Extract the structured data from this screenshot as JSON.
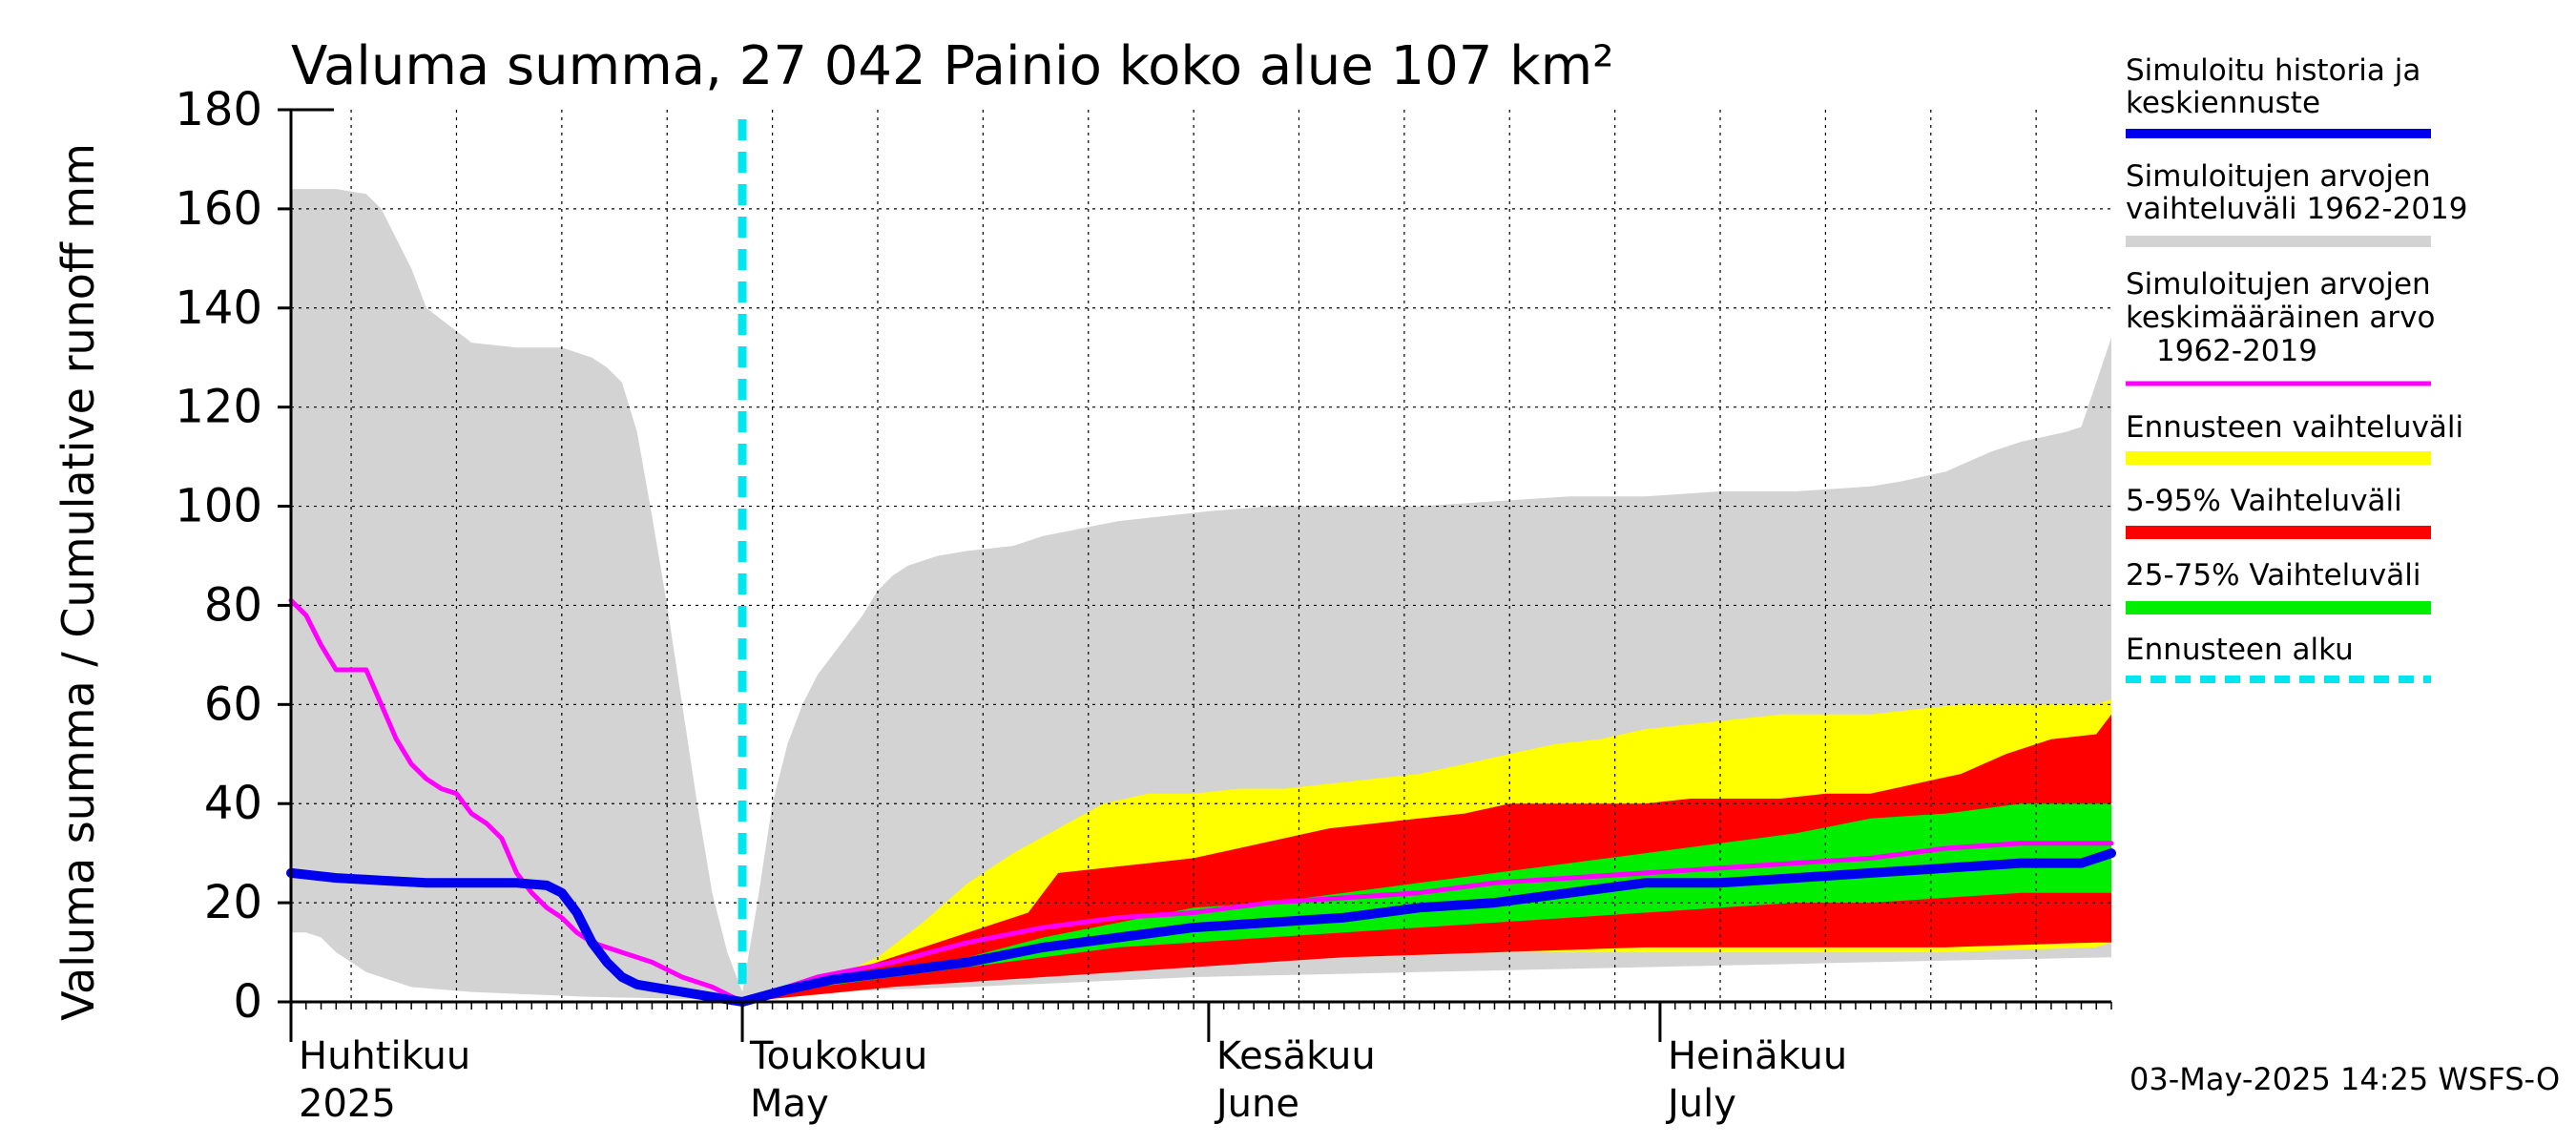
{
  "chart_data": {
    "type": "area",
    "title": "Valuma summa, 27 042 Painio koko alue 107 km²",
    "ylabel": "Valuma summa / Cumulative runoff    mm",
    "xlabel": "",
    "ylim": [
      0,
      180
    ],
    "yticks": [
      "0",
      "20",
      "40",
      "60",
      "80",
      "100",
      "120",
      "140",
      "160",
      "180"
    ],
    "grid": true,
    "x_start_day": 0,
    "x_end_day": 121,
    "forecast_start_day": 30,
    "x_labels": [
      {
        "day": 0,
        "line1": "Huhtikuu",
        "line2": "2025"
      },
      {
        "day": 30,
        "line1": "Toukokuu",
        "line2": "May"
      },
      {
        "day": 61,
        "line1": "Kesäkuu",
        "line2": "June"
      },
      {
        "day": 91,
        "line1": "Heinäkuu",
        "line2": "July"
      }
    ],
    "colors": {
      "hist_range": "#d3d3d3",
      "forecast_range": "#ffff00",
      "p5_95": "#ff0000",
      "p25_75": "#00ee00",
      "mean": "#ff00ff",
      "median": "#0000ee",
      "forecast_start": "#00e5ee"
    },
    "series": [
      {
        "name": "hist_range_upper",
        "x": [
          0,
          3,
          5,
          6,
          8,
          9,
          12,
          15,
          18,
          19,
          20,
          21,
          22,
          23,
          24,
          25,
          26,
          27,
          28,
          29,
          30,
          31,
          32,
          33,
          34,
          35,
          36,
          37,
          38,
          39,
          40,
          41,
          43,
          45,
          48,
          50,
          55,
          61,
          65,
          70,
          75,
          80,
          85,
          90,
          95,
          100,
          105,
          107,
          110,
          113,
          115,
          118,
          119,
          120,
          121
        ],
        "values": [
          164,
          164,
          163,
          160,
          148,
          140,
          133,
          132,
          132,
          131,
          130,
          128,
          125,
          115,
          98,
          80,
          60,
          40,
          22,
          10,
          2,
          20,
          40,
          52,
          60,
          66,
          70,
          74,
          78,
          83,
          86,
          88,
          90,
          91,
          92,
          94,
          97,
          99,
          100,
          100,
          100,
          101,
          102,
          102,
          103,
          103,
          104,
          105,
          107,
          111,
          113,
          115,
          116,
          125,
          134
        ]
      },
      {
        "name": "hist_range_lower",
        "x": [
          0,
          1,
          2,
          3,
          4,
          5,
          8,
          12,
          20,
          28,
          30,
          35,
          45,
          60,
          75,
          90,
          105,
          121
        ],
        "values": [
          14,
          14,
          13,
          10,
          8,
          6,
          3,
          2,
          1,
          0.5,
          0,
          2,
          3,
          5,
          6,
          7,
          8,
          9
        ]
      },
      {
        "name": "forecast_range_upper",
        "x": [
          30,
          33,
          36,
          39,
          42,
          45,
          48,
          51,
          54,
          57,
          60,
          63,
          66,
          69,
          72,
          75,
          78,
          81,
          84,
          87,
          90,
          93,
          96,
          99,
          102,
          105,
          108,
          111,
          114,
          117,
          120,
          121
        ],
        "values": [
          0,
          2,
          5,
          9,
          16,
          24,
          30,
          35,
          40,
          42,
          42,
          43,
          43,
          44,
          45,
          46,
          48,
          50,
          52,
          53,
          55,
          56,
          57,
          58,
          58,
          58,
          59,
          60,
          60,
          60,
          60,
          61
        ]
      },
      {
        "name": "forecast_range_lower",
        "x": [
          30,
          40,
          50,
          60,
          70,
          80,
          90,
          100,
          110,
          120,
          121
        ],
        "values": [
          0,
          3,
          6,
          8,
          9,
          10,
          10,
          10,
          10,
          11,
          12
        ]
      },
      {
        "name": "p95",
        "x": [
          30,
          33,
          36,
          39,
          42,
          45,
          47,
          49,
          51,
          54,
          57,
          60,
          63,
          66,
          69,
          72,
          75,
          78,
          81,
          84,
          87,
          90,
          93,
          96,
          99,
          102,
          105,
          108,
          111,
          114,
          117,
          120,
          121
        ],
        "values": [
          0,
          2,
          5,
          8,
          11,
          14,
          16,
          18,
          26,
          27,
          28,
          29,
          31,
          33,
          35,
          36,
          37,
          38,
          40,
          40,
          40,
          40,
          41,
          41,
          41,
          42,
          42,
          44,
          46,
          50,
          53,
          54,
          58
        ]
      },
      {
        "name": "p5",
        "x": [
          30,
          40,
          50,
          60,
          70,
          80,
          90,
          100,
          110,
          120,
          121
        ],
        "values": [
          0,
          3,
          5,
          7,
          9,
          10,
          11,
          11,
          11,
          12,
          12
        ]
      },
      {
        "name": "p75",
        "x": [
          30,
          35,
          40,
          45,
          50,
          55,
          60,
          65,
          70,
          75,
          80,
          85,
          90,
          95,
          100,
          105,
          110,
          115,
          120,
          121
        ],
        "values": [
          0,
          3,
          6,
          9,
          13,
          16,
          19,
          20,
          22,
          24,
          26,
          28,
          30,
          32,
          34,
          37,
          38,
          40,
          40,
          40
        ]
      },
      {
        "name": "p25",
        "x": [
          30,
          35,
          40,
          45,
          50,
          55,
          60,
          65,
          70,
          75,
          80,
          85,
          90,
          95,
          100,
          105,
          110,
          115,
          120,
          121
        ],
        "values": [
          0,
          3,
          5,
          7,
          9,
          11,
          12,
          13,
          14,
          15,
          16,
          17,
          18,
          19,
          20,
          20,
          21,
          22,
          22,
          22
        ]
      },
      {
        "name": "Simuloitujen arvojen keskimääräinen arvo 1962-2019",
        "x": [
          0,
          1,
          2,
          3,
          5,
          6,
          7,
          8,
          9,
          10,
          11,
          12,
          13,
          14,
          15,
          16,
          17,
          18,
          19,
          20,
          22,
          24,
          26,
          28,
          30,
          32,
          35,
          40,
          45,
          50,
          55,
          60,
          65,
          70,
          75,
          80,
          85,
          90,
          95,
          100,
          105,
          110,
          115,
          121
        ],
        "values": [
          81,
          78,
          72,
          67,
          67,
          60,
          53,
          48,
          45,
          43,
          42,
          38,
          36,
          33,
          26,
          22,
          19,
          17,
          14,
          12,
          10,
          8,
          5,
          3,
          0,
          2,
          5,
          8,
          12,
          15,
          17,
          18,
          20,
          21,
          22,
          24,
          25,
          26,
          27,
          28,
          29,
          31,
          32,
          32
        ]
      },
      {
        "name": "Simuloitu historia ja keskiennuste",
        "x": [
          0,
          3,
          6,
          9,
          12,
          15,
          17,
          18,
          19,
          20,
          21,
          22,
          23,
          24,
          25,
          26,
          27,
          28,
          29,
          30,
          33,
          36,
          40,
          45,
          50,
          55,
          60,
          65,
          70,
          75,
          80,
          85,
          90,
          95,
          100,
          105,
          110,
          115,
          119,
          121
        ],
        "values": [
          26,
          25,
          24.5,
          24,
          24,
          24,
          23.5,
          22,
          18,
          12,
          8,
          5,
          3.5,
          3,
          2.5,
          2,
          1.5,
          1,
          0.5,
          0,
          2.5,
          4.5,
          6,
          8,
          11,
          13,
          15,
          16,
          17,
          19,
          20,
          22,
          24,
          24,
          25,
          26,
          27,
          28,
          28,
          30
        ]
      }
    ]
  },
  "legend": {
    "items": [
      {
        "label1": "Simuloitu historia ja",
        "label2": "keskiennuste",
        "label3": "",
        "color": "#0000ee",
        "style": "solid"
      },
      {
        "label1": "Simuloitujen arvojen",
        "label2": "vaihteluväli 1962-2019",
        "label3": "",
        "color": "#d3d3d3",
        "style": "solid"
      },
      {
        "label1": "Simuloitujen arvojen",
        "label2": "keskimääräinen arvo",
        "label3": "1962-2019",
        "color": "#ff00ff",
        "style": "solid"
      },
      {
        "label1": "Ennusteen vaihteluväli",
        "label2": "",
        "label3": "",
        "color": "#ffff00",
        "style": "solid"
      },
      {
        "label1": "5-95% Vaihteluväli",
        "label2": "",
        "label3": "",
        "color": "#ff0000",
        "style": "solid"
      },
      {
        "label1": "25-75% Vaihteluväli",
        "label2": "",
        "label3": "",
        "color": "#00ee00",
        "style": "solid"
      },
      {
        "label1": "Ennusteen alku",
        "label2": "",
        "label3": "",
        "color": "#00e5ee",
        "style": "dashed"
      }
    ]
  },
  "footer": {
    "timestamp": "03-May-2025 14:25 WSFS-O"
  }
}
